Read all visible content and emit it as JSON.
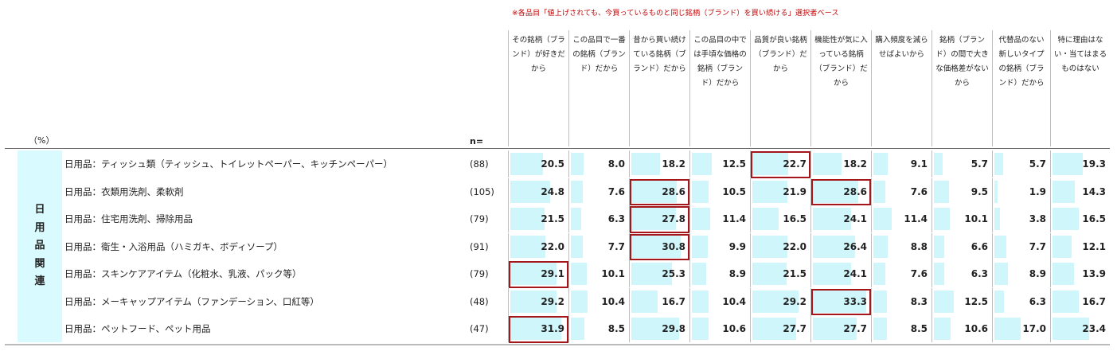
{
  "note": "※各品目「値上げされても、今買っているものと同じ銘柄（ブランド）を買い続ける」選択者ベース",
  "unit_label": "（%）",
  "n_label": "n=",
  "category": "日用品関連",
  "columns": [
    "その銘柄（ブランド）が好きだから",
    "この品目で一番の銘柄（ブランド）だから",
    "昔から買い続けている銘柄（ブランド）だから",
    "この品目の中では手頃な価格の銘柄（ブランド）だから",
    "品質が良い銘柄（ブランド）だから",
    "機能性が気に入っている銘柄（ブランド）だから",
    "購入頻度を減らせばよいから",
    "銘柄（ブランド）の間で大きな価格差がないから",
    "代替品のない新しいタイプの銘柄（ブランド）だから",
    "特に理由はない・当てはまるものはない"
  ],
  "rows": [
    {
      "label": "日用品：ティッシュ類（ティッシュ、トイレットペーパー、キッチンペーパー）",
      "n": "(88)",
      "values": [
        "20.5",
        "8.0",
        "18.2",
        "12.5",
        "22.7",
        "18.2",
        "9.1",
        "5.7",
        "5.7",
        "19.3"
      ]
    },
    {
      "label": "日用品：衣類用洗剤、柔軟剤",
      "n": "(105)",
      "values": [
        "24.8",
        "7.6",
        "28.6",
        "10.5",
        "21.9",
        "28.6",
        "7.6",
        "9.5",
        "1.9",
        "14.3"
      ]
    },
    {
      "label": "日用品：住宅用洗剤、掃除用品",
      "n": "(79)",
      "values": [
        "21.5",
        "6.3",
        "27.8",
        "11.4",
        "16.5",
        "24.1",
        "11.4",
        "10.1",
        "3.8",
        "16.5"
      ]
    },
    {
      "label": "日用品：衛生・入浴用品（ハミガキ、ボディソープ）",
      "n": "(91)",
      "values": [
        "22.0",
        "7.7",
        "30.8",
        "9.9",
        "22.0",
        "26.4",
        "8.8",
        "6.6",
        "7.7",
        "12.1"
      ]
    },
    {
      "label": "日用品：スキンケアアイテム（化粧水、乳液、パック等）",
      "n": "(79)",
      "values": [
        "29.1",
        "10.1",
        "25.3",
        "8.9",
        "21.5",
        "24.1",
        "7.6",
        "6.3",
        "8.9",
        "13.9"
      ]
    },
    {
      "label": "日用品：メーキャップアイテム（ファンデーション、口紅等）",
      "n": "(48)",
      "values": [
        "29.2",
        "10.4",
        "16.7",
        "10.4",
        "29.2",
        "33.3",
        "8.3",
        "12.5",
        "6.3",
        "16.7"
      ]
    },
    {
      "label": "日用品：ペットフード、ペット用品",
      "n": "(47)",
      "values": [
        "31.9",
        "8.5",
        "29.8",
        "10.6",
        "27.7",
        "27.7",
        "8.5",
        "10.6",
        "17.0",
        "23.4"
      ]
    }
  ],
  "bar_max_value": 35,
  "highlight_color": "#a4161a",
  "bar_color": "#cff6fa",
  "highlights": [
    [
      0,
      4
    ],
    [
      1,
      2
    ],
    [
      1,
      5
    ],
    [
      2,
      2
    ],
    [
      3,
      2
    ],
    [
      4,
      0
    ],
    [
      5,
      5
    ],
    [
      6,
      0
    ]
  ]
}
